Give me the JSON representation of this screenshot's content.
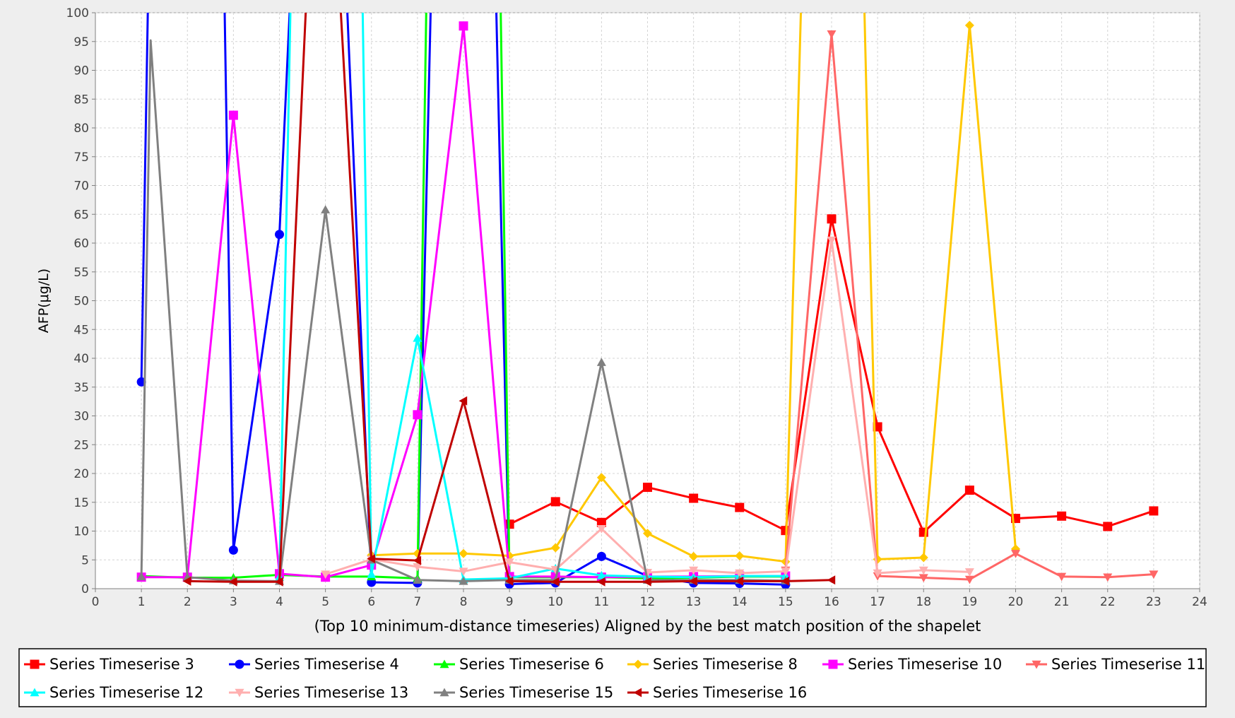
{
  "chart_data": {
    "type": "line",
    "title": "",
    "xlabel": "(Top 10 minimum-distance timeseries) Aligned by the best match position of the shapelet",
    "ylabel": "AFP(μg/L)",
    "xlim": [
      0,
      24
    ],
    "ylim": [
      0,
      100
    ],
    "x_ticks": [
      0,
      1,
      2,
      3,
      4,
      5,
      6,
      7,
      8,
      9,
      10,
      11,
      12,
      13,
      14,
      15,
      16,
      17,
      18,
      19,
      20,
      21,
      22,
      23,
      24
    ],
    "y_ticks": [
      0,
      5,
      10,
      15,
      20,
      25,
      30,
      35,
      40,
      45,
      50,
      55,
      60,
      65,
      70,
      75,
      80,
      85,
      90,
      95,
      100
    ],
    "grid": true,
    "legend_position": "bottom",
    "series": [
      {
        "name": "Series Timeserise 3",
        "color": "#ff0000",
        "marker": "square",
        "x": [
          9,
          10,
          11,
          12,
          13,
          14,
          15,
          16,
          17,
          18,
          19,
          20,
          21,
          22,
          23
        ],
        "y": [
          11.2,
          15.1,
          11.5,
          17.6,
          15.7,
          14.1,
          10.1,
          64.2,
          28.1,
          9.8,
          17.1,
          12.2,
          12.6,
          10.8,
          13.5
        ]
      },
      {
        "name": "Series Timeserise 4",
        "color": "#0000ff",
        "marker": "circle",
        "x": [
          1,
          1.15,
          2.8,
          3,
          4,
          4.25,
          5.45,
          6,
          7,
          7.3,
          8.7,
          9,
          10,
          11,
          12,
          13,
          14,
          15
        ],
        "y": [
          35.9,
          105,
          105,
          6.7,
          61.5,
          105,
          105,
          1.1,
          1.0,
          105,
          105,
          0.8,
          1.0,
          5.6,
          2.2,
          1.0,
          0.9,
          0.7
        ]
      },
      {
        "name": "Series Timeserise 6",
        "color": "#00ff00",
        "marker": "triangle-up",
        "x": [
          1,
          2,
          3,
          4,
          5,
          6,
          7,
          7.2,
          8.8,
          9,
          10,
          11,
          12,
          13,
          14,
          15
        ],
        "y": [
          2.2,
          1.9,
          1.9,
          2.4,
          2.1,
          2.1,
          1.8,
          105,
          105,
          2.0,
          2.0,
          2.0,
          1.8,
          1.9,
          2.1,
          2.1
        ]
      },
      {
        "name": "Series Timeserise 8",
        "color": "#ffc800",
        "marker": "diamond",
        "x": [
          6,
          7,
          8,
          9,
          10,
          11,
          12,
          13,
          14,
          15,
          15.35,
          16.7,
          17,
          18,
          19,
          20
        ],
        "y": [
          5.8,
          6.1,
          6.1,
          5.7,
          7.1,
          19.3,
          9.6,
          5.6,
          5.7,
          4.7,
          105,
          105,
          5.1,
          5.4,
          97.8,
          6.9
        ]
      },
      {
        "name": "Series Timeserise 10",
        "color": "#ff00ff",
        "marker": "square",
        "x": [
          1,
          2,
          3,
          4,
          5,
          6,
          7,
          8,
          9,
          10,
          11,
          12,
          13,
          14,
          15
        ],
        "y": [
          2.0,
          2.0,
          82.2,
          2.6,
          2.0,
          4.1,
          30.2,
          97.7,
          2.1,
          2.1,
          2.0,
          2.1,
          2.1,
          2.2,
          2.2
        ]
      },
      {
        "name": "Series Timeserise 11",
        "color": "#ff6666",
        "marker": "triangle-down",
        "x": [
          15,
          16,
          17,
          18,
          19,
          20,
          21,
          22,
          23
        ],
        "y": [
          3.2,
          96.3,
          2.2,
          1.9,
          1.6,
          6.1,
          2.1,
          2.0,
          2.5
        ]
      },
      {
        "name": "Series Timeserise 12",
        "color": "#00ffff",
        "marker": "triangle-up",
        "x": [
          4,
          4.25,
          5.8,
          6,
          7,
          8,
          9,
          10,
          11,
          12,
          13,
          14,
          15
        ],
        "y": [
          2.0,
          105,
          105,
          2.5,
          43.5,
          1.6,
          1.8,
          3.5,
          2.3,
          2.1,
          2.0,
          2.2,
          2.2
        ]
      },
      {
        "name": "Series Timeserise 13",
        "color": "#ffafaf",
        "marker": "triangle-down",
        "x": [
          5,
          6,
          7,
          8,
          9,
          10,
          11,
          12,
          13,
          14,
          15,
          16,
          17,
          18,
          19
        ],
        "y": [
          2.5,
          5.1,
          3.8,
          3.0,
          4.6,
          3.3,
          10.4,
          2.8,
          3.2,
          2.7,
          3.0,
          60.5,
          2.7,
          3.2,
          2.9
        ]
      },
      {
        "name": "Series Timeserise 15",
        "color": "#808080",
        "marker": "triangle-up",
        "x": [
          1,
          1.2,
          2,
          3,
          4,
          5,
          6,
          7,
          8,
          9,
          10,
          11,
          12,
          13,
          14,
          15
        ],
        "y": [
          2.1,
          95.2,
          2.0,
          1.4,
          1.3,
          65.8,
          5.0,
          1.5,
          1.3,
          1.5,
          1.5,
          39.3,
          1.5,
          1.5,
          1.5,
          1.4
        ]
      },
      {
        "name": "Series Timeserise 16",
        "color": "#c00000",
        "marker": "triangle-left",
        "x": [
          2,
          3,
          4,
          4.6,
          5.3,
          6,
          7,
          8,
          9,
          10,
          11,
          12,
          13,
          14,
          15,
          16
        ],
        "y": [
          1.3,
          1.2,
          1.2,
          105,
          105,
          5.2,
          4.9,
          32.6,
          1.3,
          1.2,
          1.2,
          1.2,
          1.3,
          1.3,
          1.3,
          1.5
        ]
      }
    ]
  }
}
